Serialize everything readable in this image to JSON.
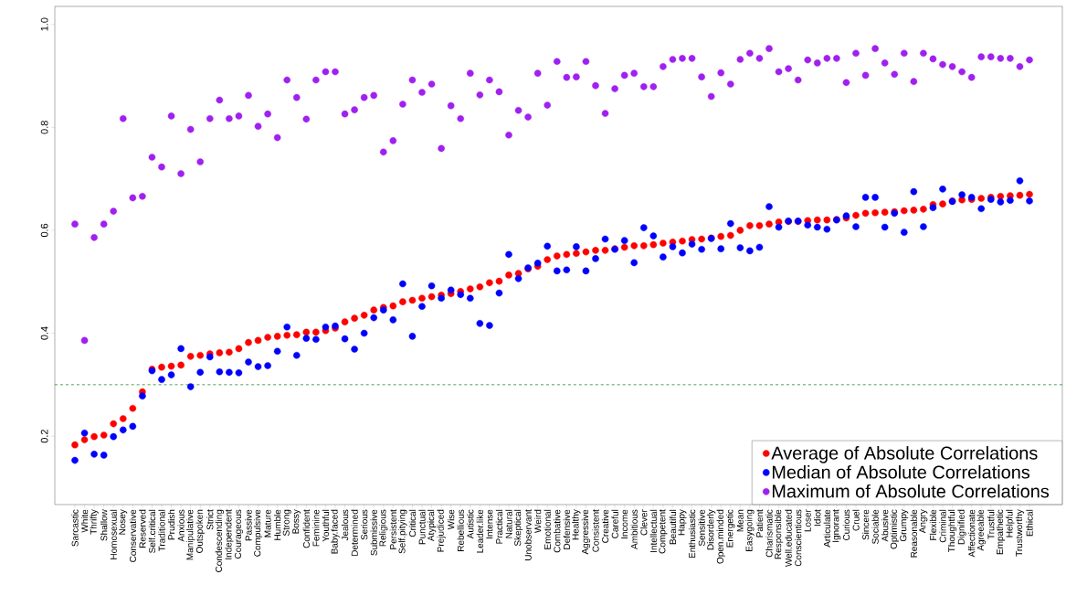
{
  "chart_data": {
    "type": "scatter",
    "marker": "circle",
    "legend": "bottom right",
    "categories": [
      "Sarcastic",
      "White",
      "Thrifty",
      "Shallow",
      "Homosexual",
      "Nosey",
      "Conservative",
      "Reserved",
      "Self.critical",
      "Traditional",
      "Prudish",
      "Anxious",
      "Manipulative",
      "Outspoken",
      "Strict",
      "Condescending",
      "Independent",
      "Courageous",
      "Passive",
      "Compulsive",
      "Mature",
      "Humble",
      "Strong",
      "Bossy",
      "Confident",
      "Feminine",
      "Youthful",
      "Baby.faced",
      "Jealous",
      "Determined",
      "Serious",
      "Submissive",
      "Religious",
      "Persistent",
      "Self.pitying",
      "Critical",
      "Punctual",
      "Atypical",
      "Prejudiced",
      "Wise",
      "Rebellious",
      "Autistic",
      "Leader.like",
      "Intense",
      "Practical",
      "Natural",
      "Skeptical",
      "Unobservant",
      "Weird",
      "Emotional",
      "Combative",
      "Defensive",
      "Healthy",
      "Aggressive",
      "Consistent",
      "Creative",
      "Careful",
      "Income",
      "Ambitious",
      "Clever",
      "Intellectual",
      "Competent",
      "Beautiful",
      "Happy",
      "Enthusiastic",
      "Sensitive",
      "Disorderly",
      "Open.minded",
      "Energetic",
      "Mean",
      "Easygoing",
      "Patient",
      "Charismatic",
      "Responsible",
      "Well.educated",
      "Conscientious",
      "Loser",
      "Idiot",
      "Articulate",
      "Ignorant",
      "Curious",
      "Cruel",
      "Sincere",
      "Sociable",
      "Abusive",
      "Optimistic",
      "Grumpy",
      "Reasonable",
      "Angry",
      "Flexible",
      "Criminal",
      "Thoughtful",
      "Dignified",
      "Affectionate",
      "Agreeable",
      "Trustful",
      "Empathetic",
      "Helpful",
      "Trustworthy",
      "Ethical"
    ],
    "series": [
      {
        "name": "Average of Absolute Correlations",
        "color": "#ff0000",
        "values": [
          0.183,
          0.193,
          0.199,
          0.202,
          0.224,
          0.234,
          0.254,
          0.286,
          0.33,
          0.334,
          0.336,
          0.338,
          0.355,
          0.357,
          0.36,
          0.362,
          0.363,
          0.37,
          0.382,
          0.386,
          0.392,
          0.394,
          0.396,
          0.397,
          0.402,
          0.402,
          0.405,
          0.41,
          0.422,
          0.429,
          0.435,
          0.445,
          0.45,
          0.453,
          0.461,
          0.464,
          0.468,
          0.471,
          0.474,
          0.477,
          0.481,
          0.486,
          0.49,
          0.498,
          0.501,
          0.513,
          0.516,
          0.525,
          0.53,
          0.543,
          0.55,
          0.553,
          0.555,
          0.558,
          0.561,
          0.561,
          0.564,
          0.567,
          0.57,
          0.57,
          0.572,
          0.575,
          0.577,
          0.579,
          0.582,
          0.583,
          0.585,
          0.588,
          0.59,
          0.6,
          0.609,
          0.609,
          0.612,
          0.616,
          0.617,
          0.617,
          0.619,
          0.62,
          0.62,
          0.621,
          0.624,
          0.629,
          0.633,
          0.634,
          0.635,
          0.636,
          0.638,
          0.639,
          0.641,
          0.65,
          0.651,
          0.657,
          0.659,
          0.66,
          0.662,
          0.664,
          0.666,
          0.667,
          0.668,
          0.67
        ]
      },
      {
        "name": "Median of Absolute Correlations",
        "color": "#0000ff",
        "values": [
          0.153,
          0.206,
          0.165,
          0.163,
          0.199,
          0.212,
          0.219,
          0.278,
          0.327,
          0.31,
          0.319,
          0.37,
          0.296,
          0.324,
          0.354,
          0.325,
          0.324,
          0.323,
          0.344,
          0.335,
          0.337,
          0.365,
          0.412,
          0.357,
          0.39,
          0.388,
          0.412,
          0.414,
          0.389,
          0.369,
          0.4,
          0.43,
          0.445,
          0.426,
          0.496,
          0.394,
          0.452,
          0.492,
          0.468,
          0.484,
          0.475,
          0.468,
          0.419,
          0.415,
          0.478,
          0.553,
          0.506,
          0.527,
          0.536,
          0.569,
          0.521,
          0.523,
          0.568,
          0.521,
          0.545,
          0.583,
          0.563,
          0.58,
          0.537,
          0.605,
          0.589,
          0.548,
          0.568,
          0.556,
          0.573,
          0.563,
          0.584,
          0.564,
          0.613,
          0.566,
          0.56,
          0.567,
          0.646,
          0.606,
          0.618,
          0.618,
          0.61,
          0.606,
          0.602,
          0.62,
          0.628,
          0.607,
          0.664,
          0.664,
          0.606,
          0.633,
          0.596,
          0.675,
          0.607,
          0.644,
          0.68,
          0.656,
          0.669,
          0.664,
          0.642,
          0.66,
          0.655,
          0.658,
          0.696,
          0.657
        ]
      },
      {
        "name": "Maximum of Absolute Correlations",
        "color": "#a020f0",
        "values": [
          0.612,
          0.386,
          0.586,
          0.612,
          0.637,
          0.817,
          0.663,
          0.666,
          0.742,
          0.723,
          0.822,
          0.71,
          0.796,
          0.733,
          0.817,
          0.853,
          0.817,
          0.822,
          0.862,
          0.802,
          0.826,
          0.78,
          0.892,
          0.858,
          0.816,
          0.892,
          0.908,
          0.908,
          0.826,
          0.834,
          0.858,
          0.862,
          0.752,
          0.774,
          0.845,
          0.892,
          0.868,
          0.884,
          0.759,
          0.842,
          0.817,
          0.905,
          0.863,
          0.892,
          0.869,
          0.785,
          0.833,
          0.82,
          0.905,
          0.843,
          0.928,
          0.897,
          0.898,
          0.928,
          0.881,
          0.827,
          0.875,
          0.901,
          0.905,
          0.879,
          0.879,
          0.918,
          0.932,
          0.934,
          0.934,
          0.898,
          0.86,
          0.906,
          0.884,
          0.932,
          0.944,
          0.934,
          0.953,
          0.908,
          0.914,
          0.892,
          0.931,
          0.925,
          0.934,
          0.934,
          0.887,
          0.944,
          0.901,
          0.953,
          0.925,
          0.903,
          0.944,
          0.889,
          0.944,
          0.933,
          0.922,
          0.918,
          0.908,
          0.897,
          0.937,
          0.937,
          0.934,
          0.934,
          0.918,
          0.931
        ]
      }
    ],
    "ylim": [
      0.067,
      1.035
    ],
    "yticks": [
      {
        "value": 0.2,
        "label": "0.2"
      },
      {
        "value": 0.4,
        "label": "0.4"
      },
      {
        "value": 0.6,
        "label": "0.6"
      },
      {
        "value": 0.8,
        "label": "0.8"
      },
      {
        "value": 1.0,
        "label": "1.0"
      }
    ],
    "ref_lines": [
      {
        "axis": "y",
        "value": 0.3,
        "color": "#228b22",
        "line_style": "dashed"
      }
    ]
  }
}
